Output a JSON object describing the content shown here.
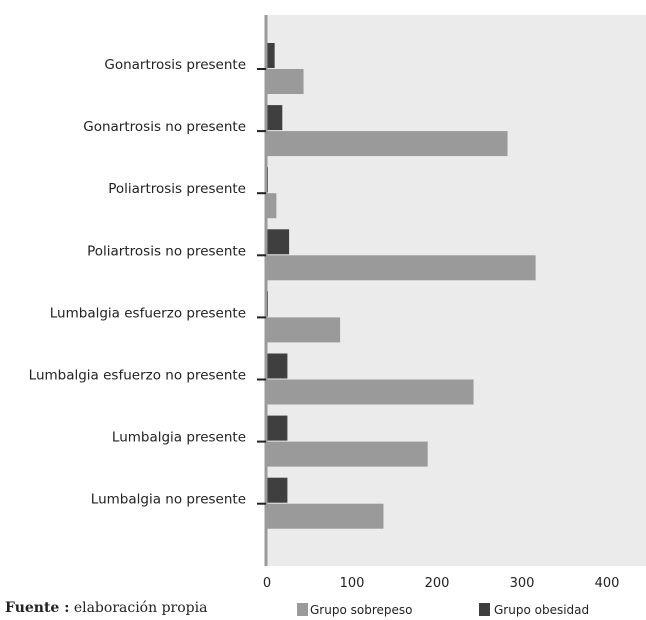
{
  "chart_data": {
    "type": "bar",
    "orientation": "horizontal",
    "categories": [
      "Gonartrosis presente",
      "Gonartrosis no presente",
      "Poliartrosis presente",
      "Poliartrosis no presente",
      "Lumbalgia esfuerzo presente",
      "Lumbalgia esfuerzo no presente",
      "Lumbalgia presente",
      "Lumbalgia no presente"
    ],
    "series": [
      {
        "name": "Grupo sobrepeso",
        "color": "#9a9a9a",
        "values": [
          43,
          283,
          11,
          316,
          86,
          243,
          189,
          137
        ]
      },
      {
        "name": "Grupo obesidad",
        "color": "#3f3f3f",
        "values": [
          9,
          18,
          0,
          26,
          0,
          24,
          24,
          24
        ]
      }
    ],
    "xlim": [
      0,
      450
    ],
    "xticks": [
      0,
      100,
      200,
      300,
      400
    ],
    "grid": false,
    "plot_background": "#ebebeb",
    "legend_position": "bottom"
  },
  "source": {
    "label": "Fuente :",
    "text": " elaboración propia"
  }
}
